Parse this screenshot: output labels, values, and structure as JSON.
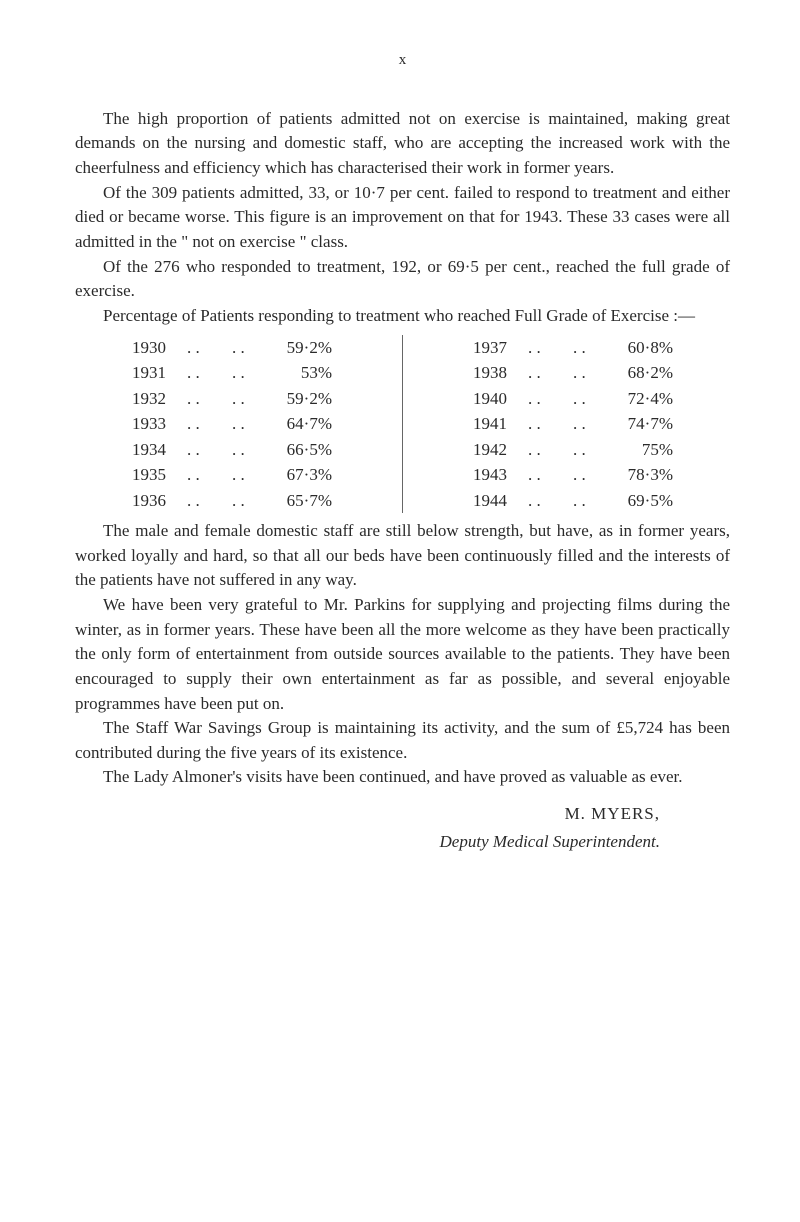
{
  "pageNumber": "x",
  "paragraphs": {
    "p1": "The high proportion of patients admitted not on exercise is main­tained, making great demands on the nursing and domestic staff, who are accepting the increased work with the cheerfulness and efficiency which has characterised their work in former years.",
    "p2": "Of the 309 patients admitted, 33, or 10·7 per cent. failed to respond to treatment and either died or became worse. This figure is an improvement on that for 1943. These 33 cases were all admitted in the \" not on exercise \" class.",
    "p3": "Of the 276 who responded to treatment, 192, or 69·5 per cent., reached the full grade of exercise.",
    "p4": "Percentage of Patients responding to treatment who reached Full Grade of Exercise :—",
    "p5": "The male and female domestic staff are still below strength, but have, as in former years, worked loyally and hard, so that all our beds have been continuously filled and the interests of the patients have not suffered in any way.",
    "p6": "We have been very grateful to Mr. Parkins for supplying and projecting films during the winter, as in former years. These have been all the more welcome as they have been practically the only form of entertainment from outside sources available to the patients. They have been encouraged to supply their own entertainment as far as possible, and several enjoyable programmes have been put on.",
    "p7": "The Staff War Savings Group is maintaining its activity, and the sum of £5,724 has been contributed during the five years of its existence.",
    "p8": "The Lady Almoner's visits have been continued, and have proved as valuable as ever."
  },
  "table": {
    "left": [
      {
        "year": "1930",
        "pct": "59·2%"
      },
      {
        "year": "1931",
        "pct": "53%"
      },
      {
        "year": "1932",
        "pct": "59·2%"
      },
      {
        "year": "1933",
        "pct": "64·7%"
      },
      {
        "year": "1934",
        "pct": "66·5%"
      },
      {
        "year": "1935",
        "pct": "67·3%"
      },
      {
        "year": "1936",
        "pct": "65·7%"
      }
    ],
    "right": [
      {
        "year": "1937",
        "pct": "60·8%"
      },
      {
        "year": "1938",
        "pct": "68·2%"
      },
      {
        "year": "1940",
        "pct": "72·4%"
      },
      {
        "year": "1941",
        "pct": "74·7%"
      },
      {
        "year": "1942",
        "pct": "75%"
      },
      {
        "year": "1943",
        "pct": "78·3%"
      },
      {
        "year": "1944",
        "pct": "69·5%"
      }
    ]
  },
  "signature": {
    "name": "M. MYERS,",
    "title": "Deputy Medical Superintendent."
  }
}
